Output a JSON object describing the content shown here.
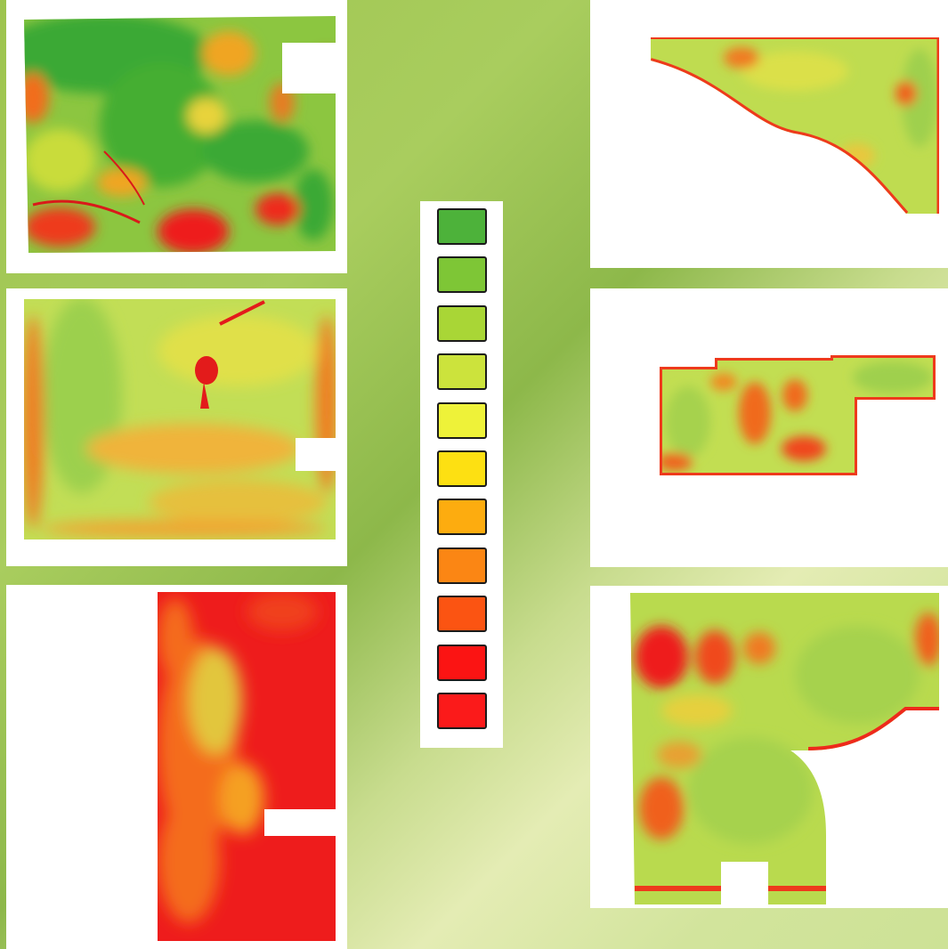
{
  "fields": [
    {
      "id": "field-1",
      "dominant": "green",
      "colors": [
        "#3fae2c",
        "#6cbd36",
        "#a9d64a",
        "#e5e53a",
        "#f7a11a",
        "#f45a14",
        "#ee1c1c"
      ]
    },
    {
      "id": "field-2",
      "dominant": "yellow-green",
      "colors": [
        "#9fd24c",
        "#c5e04a",
        "#e5e53a",
        "#f7a11a",
        "#f45a14",
        "#ee1c1c"
      ]
    },
    {
      "id": "field-3",
      "dominant": "red",
      "colors": [
        "#ee1c1c",
        "#f45a14",
        "#f7a11a",
        "#e5e53a",
        "#c5e04a"
      ]
    },
    {
      "id": "field-4",
      "dominant": "yellow-green",
      "colors": [
        "#9fd24c",
        "#c5e04a",
        "#e5e53a",
        "#f7a11a",
        "#ee1c1c"
      ]
    },
    {
      "id": "field-5",
      "dominant": "yellow-green",
      "colors": [
        "#9fd24c",
        "#c5e04a",
        "#e5e53a",
        "#f45a14",
        "#ee1c1c"
      ]
    },
    {
      "id": "field-6",
      "dominant": "yellow-green",
      "colors": [
        "#9fd24c",
        "#c5e04a",
        "#e5e53a",
        "#f45a14",
        "#ee1c1c"
      ]
    }
  ],
  "legend": {
    "colors": [
      "#4db23a",
      "#7ec636",
      "#a9d636",
      "#cce33c",
      "#eef239",
      "#fde012",
      "#fdac0f",
      "#fb8614",
      "#fb5412",
      "#fb1413",
      "#fb1a1a"
    ]
  }
}
